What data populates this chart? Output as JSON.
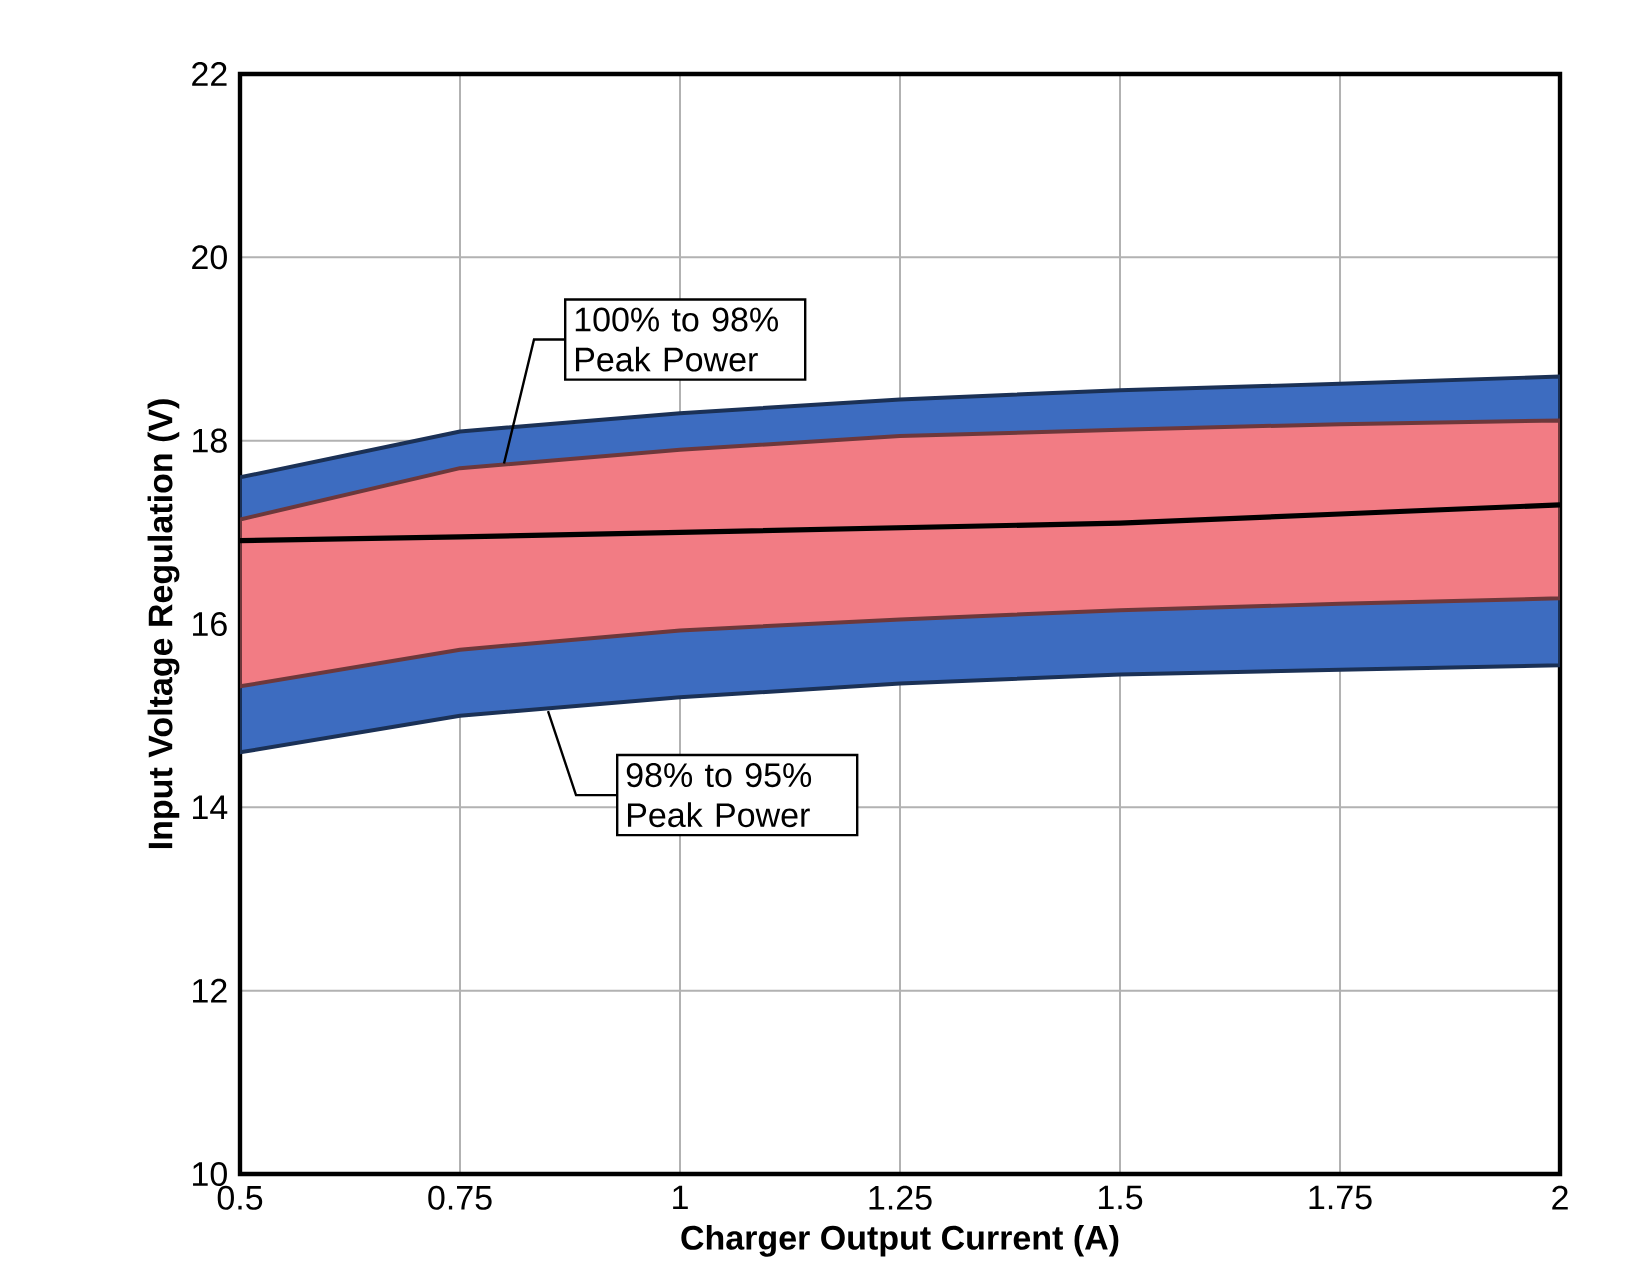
{
  "chart_data": {
    "type": "area",
    "xlabel": "Charger Output Current (A)",
    "ylabel": "Input Voltage Regulation (V)",
    "x": [
      0.5,
      0.75,
      1,
      1.25,
      1.5,
      1.75,
      2
    ],
    "series": [
      {
        "color": "#3d6cc0",
        "values": [
          null,
          null,
          null,
          null,
          null,
          null,
          null
        ],
        "lower": [
          14.6,
          15.0,
          15.2,
          15.35,
          15.45,
          15.5,
          15.55
        ],
        "upper": [
          17.6,
          18.1,
          18.3,
          18.45,
          18.55,
          18.62,
          18.7
        ]
      },
      {
        "color": "#f27c84",
        "values": [
          null,
          null,
          null,
          null,
          null,
          null,
          null
        ],
        "lower": [
          15.32,
          15.72,
          15.93,
          16.05,
          16.15,
          16.22,
          16.28
        ],
        "upper": [
          17.14,
          17.7,
          17.9,
          18.05,
          18.12,
          18.18,
          18.22
        ]
      },
      {
        "type": "line",
        "color": "#000000",
        "values": [
          16.91,
          16.95,
          17.0,
          17.05,
          17.1,
          17.2,
          17.3
        ]
      }
    ],
    "annotations": [
      {
        "text": "100% to 98% Peak Power",
        "x": 0.8,
        "y": 17.75
      },
      {
        "text": "98% to 95% Peak Power",
        "x": 0.85,
        "y": 15.05
      }
    ],
    "xlim": [
      0.5,
      2
    ],
    "ylim": [
      10,
      22
    ],
    "xticks": [
      0.5,
      0.75,
      1,
      1.25,
      1.5,
      1.75,
      2
    ],
    "yticks": [
      10,
      12,
      14,
      16,
      18,
      20,
      22
    ],
    "grid": true,
    "marker": "none",
    "line_style": "solid"
  }
}
